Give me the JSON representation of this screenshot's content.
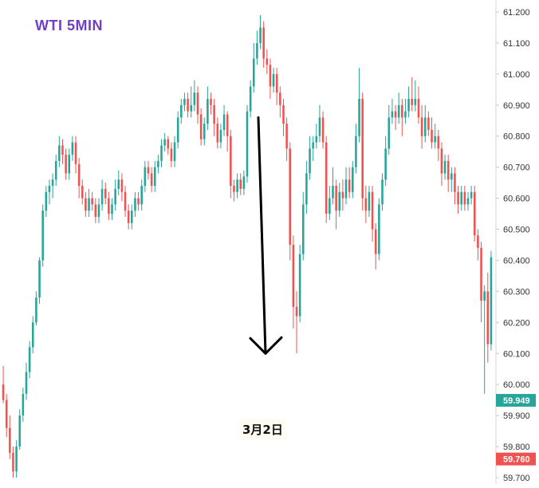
{
  "chart_data": {
    "type": "candlestick",
    "title": "WTI 5MIN",
    "annotation": "3月2日",
    "y_axis": {
      "position": "right",
      "ylim": [
        59.68,
        61.22
      ],
      "tick_labels": [
        "61.200",
        "61.100",
        "61.000",
        "60.900",
        "60.800",
        "60.700",
        "60.600",
        "60.500",
        "60.400",
        "60.300",
        "60.200",
        "60.100",
        "60.000",
        "59.900",
        "59.800",
        "59.700"
      ],
      "tick_values": [
        61.2,
        61.1,
        61.0,
        60.9,
        60.8,
        60.7,
        60.6,
        60.5,
        60.4,
        60.3,
        60.2,
        60.1,
        60.0,
        59.9,
        59.8,
        59.7
      ]
    },
    "price_tags": [
      {
        "label": "59.949",
        "value": 59.949,
        "color": "#26a69a"
      },
      {
        "label": "59.760",
        "value": 59.76,
        "color": "#ef5350"
      }
    ],
    "grid": false,
    "colors": {
      "up": "#26a69a",
      "down": "#ef5350",
      "arrow": "#000000",
      "title": "#6f3fc6"
    },
    "arrow": {
      "from_value": 60.86,
      "to_value": 60.1
    },
    "candles": [
      [
        60.0,
        59.95,
        60.06,
        59.94
      ],
      [
        59.95,
        59.86,
        59.97,
        59.83
      ],
      [
        59.86,
        59.78,
        59.9,
        59.76
      ],
      [
        59.78,
        59.72,
        59.8,
        59.7
      ],
      [
        59.72,
        59.8,
        59.82,
        59.7
      ],
      [
        59.8,
        59.9,
        59.92,
        59.79
      ],
      [
        59.9,
        59.97,
        59.99,
        59.88
      ],
      [
        59.97,
        60.04,
        60.07,
        59.95
      ],
      [
        60.04,
        60.12,
        60.14,
        60.02
      ],
      [
        60.12,
        60.2,
        60.22,
        60.1
      ],
      [
        60.2,
        60.28,
        60.3,
        60.19
      ],
      [
        60.28,
        60.4,
        60.41,
        60.26
      ],
      [
        60.4,
        60.56,
        60.58,
        60.38
      ],
      [
        60.56,
        60.62,
        60.64,
        60.54
      ],
      [
        60.62,
        60.64,
        60.66,
        60.58
      ],
      [
        60.64,
        60.66,
        60.68,
        60.6
      ],
      [
        60.66,
        60.72,
        60.74,
        60.64
      ],
      [
        60.72,
        60.77,
        60.8,
        60.7
      ],
      [
        60.77,
        60.74,
        60.79,
        60.71
      ],
      [
        60.74,
        60.68,
        60.76,
        60.66
      ],
      [
        60.68,
        60.74,
        60.76,
        60.66
      ],
      [
        60.74,
        60.78,
        60.8,
        60.72
      ],
      [
        60.78,
        60.71,
        60.8,
        60.68
      ],
      [
        60.71,
        60.64,
        60.73,
        60.6
      ],
      [
        60.64,
        60.6,
        60.66,
        60.58
      ],
      [
        60.6,
        60.56,
        60.62,
        60.54
      ],
      [
        60.56,
        60.6,
        60.63,
        60.54
      ],
      [
        60.6,
        60.58,
        60.62,
        60.56
      ],
      [
        60.58,
        60.54,
        60.6,
        60.52
      ],
      [
        60.54,
        60.58,
        60.6,
        60.52
      ],
      [
        60.58,
        60.63,
        60.66,
        60.56
      ],
      [
        60.63,
        60.6,
        60.65,
        60.58
      ],
      [
        60.6,
        60.55,
        60.62,
        60.53
      ],
      [
        60.55,
        60.58,
        60.6,
        60.53
      ],
      [
        60.58,
        60.63,
        60.66,
        60.56
      ],
      [
        60.63,
        60.66,
        60.69,
        60.61
      ],
      [
        60.66,
        60.62,
        60.68,
        60.59
      ],
      [
        60.62,
        60.56,
        60.64,
        60.54
      ],
      [
        60.56,
        60.52,
        60.58,
        60.5
      ],
      [
        60.52,
        60.56,
        60.58,
        60.5
      ],
      [
        60.56,
        60.6,
        60.62,
        60.54
      ],
      [
        60.6,
        60.58,
        60.62,
        60.56
      ],
      [
        60.58,
        60.64,
        60.66,
        60.56
      ],
      [
        60.64,
        60.7,
        60.72,
        60.62
      ],
      [
        60.7,
        60.68,
        60.72,
        60.66
      ],
      [
        60.68,
        60.64,
        60.7,
        60.62
      ],
      [
        60.64,
        60.7,
        60.72,
        60.62
      ],
      [
        60.7,
        60.72,
        60.74,
        60.68
      ],
      [
        60.72,
        60.77,
        60.79,
        60.7
      ],
      [
        60.77,
        60.79,
        60.81,
        60.75
      ],
      [
        60.79,
        60.76,
        60.8,
        60.74
      ],
      [
        60.76,
        60.72,
        60.78,
        60.7
      ],
      [
        60.72,
        60.78,
        60.8,
        60.7
      ],
      [
        60.78,
        60.86,
        60.88,
        60.76
      ],
      [
        60.86,
        60.9,
        60.92,
        60.84
      ],
      [
        60.9,
        60.92,
        60.94,
        60.88
      ],
      [
        60.92,
        60.88,
        60.94,
        60.86
      ],
      [
        60.88,
        60.9,
        60.96,
        60.86
      ],
      [
        60.9,
        60.94,
        60.98,
        60.88
      ],
      [
        60.94,
        60.87,
        60.96,
        60.84
      ],
      [
        60.87,
        60.79,
        60.89,
        60.77
      ],
      [
        60.79,
        60.84,
        60.86,
        60.77
      ],
      [
        60.84,
        60.92,
        60.96,
        60.82
      ],
      [
        60.92,
        60.9,
        60.94,
        60.87
      ],
      [
        60.9,
        60.84,
        60.92,
        60.8
      ],
      [
        60.84,
        60.78,
        60.86,
        60.76
      ],
      [
        60.78,
        60.82,
        60.84,
        60.76
      ],
      [
        60.82,
        60.87,
        60.9,
        60.8
      ],
      [
        60.87,
        60.8,
        60.88,
        60.75
      ],
      [
        60.8,
        60.64,
        60.82,
        60.6
      ],
      [
        60.64,
        60.62,
        60.66,
        60.59
      ],
      [
        60.62,
        60.66,
        60.68,
        60.6
      ],
      [
        60.66,
        60.63,
        60.68,
        60.61
      ],
      [
        60.63,
        60.67,
        60.69,
        60.61
      ],
      [
        60.67,
        60.88,
        60.9,
        60.65
      ],
      [
        60.88,
        60.96,
        60.98,
        60.86
      ],
      [
        60.96,
        61.05,
        61.1,
        60.94
      ],
      [
        61.05,
        61.1,
        61.14,
        61.03
      ],
      [
        61.1,
        61.15,
        61.19,
        61.08
      ],
      [
        61.15,
        61.05,
        61.17,
        61.02
      ],
      [
        61.05,
        61.03,
        61.08,
        61.0
      ],
      [
        61.03,
        60.96,
        61.05,
        60.92
      ],
      [
        60.96,
        61.0,
        61.02,
        60.94
      ],
      [
        61.0,
        60.94,
        61.02,
        60.9
      ],
      [
        60.94,
        60.9,
        60.96,
        60.86
      ],
      [
        60.9,
        60.84,
        60.92,
        60.8
      ],
      [
        60.84,
        60.76,
        60.86,
        60.72
      ],
      [
        60.76,
        60.45,
        60.78,
        60.4
      ],
      [
        60.45,
        60.25,
        60.48,
        60.18
      ],
      [
        60.25,
        60.22,
        60.3,
        60.1
      ],
      [
        60.22,
        60.42,
        60.45,
        60.2
      ],
      [
        60.42,
        60.58,
        60.62,
        60.4
      ],
      [
        60.58,
        60.68,
        60.72,
        60.55
      ],
      [
        60.68,
        60.76,
        60.8,
        60.66
      ],
      [
        60.76,
        60.78,
        60.8,
        60.72
      ],
      [
        60.78,
        60.8,
        60.84,
        60.76
      ],
      [
        60.8,
        60.86,
        60.9,
        60.78
      ],
      [
        60.86,
        60.78,
        60.88,
        60.76
      ],
      [
        60.78,
        60.55,
        60.8,
        60.52
      ],
      [
        60.55,
        60.6,
        60.64,
        60.53
      ],
      [
        60.6,
        60.64,
        60.7,
        60.58
      ],
      [
        60.64,
        60.56,
        60.66,
        60.5
      ],
      [
        60.56,
        60.62,
        60.65,
        60.54
      ],
      [
        60.62,
        60.6,
        60.66,
        60.56
      ],
      [
        60.6,
        60.66,
        60.7,
        60.58
      ],
      [
        60.66,
        60.62,
        60.7,
        60.6
      ],
      [
        60.62,
        60.7,
        60.72,
        60.6
      ],
      [
        60.7,
        60.8,
        60.84,
        60.68
      ],
      [
        60.8,
        60.92,
        61.02,
        60.78
      ],
      [
        60.92,
        60.6,
        60.94,
        60.56
      ],
      [
        60.6,
        60.56,
        60.64,
        60.52
      ],
      [
        60.56,
        60.62,
        60.64,
        60.54
      ],
      [
        60.62,
        60.5,
        60.64,
        60.46
      ],
      [
        60.5,
        60.42,
        60.52,
        60.37
      ],
      [
        60.42,
        60.58,
        60.6,
        60.4
      ],
      [
        60.58,
        60.66,
        60.68,
        60.56
      ],
      [
        60.66,
        60.76,
        60.8,
        60.64
      ],
      [
        60.76,
        60.86,
        60.9,
        60.74
      ],
      [
        60.86,
        60.88,
        60.92,
        60.84
      ],
      [
        60.88,
        60.86,
        60.9,
        60.82
      ],
      [
        60.86,
        60.9,
        60.94,
        60.84
      ],
      [
        60.9,
        60.86,
        60.92,
        60.8
      ],
      [
        60.86,
        60.88,
        60.92,
        60.84
      ],
      [
        60.88,
        60.92,
        60.96,
        60.86
      ],
      [
        60.92,
        60.9,
        60.99,
        60.88
      ],
      [
        60.9,
        60.92,
        60.98,
        60.88
      ],
      [
        60.92,
        60.86,
        60.96,
        60.84
      ],
      [
        60.86,
        60.8,
        60.9,
        60.76
      ],
      [
        60.8,
        60.86,
        60.9,
        60.78
      ],
      [
        60.86,
        60.82,
        60.88,
        60.8
      ],
      [
        60.82,
        60.78,
        60.86,
        60.76
      ],
      [
        60.78,
        60.8,
        60.84,
        60.76
      ],
      [
        60.8,
        60.76,
        60.82,
        60.72
      ],
      [
        60.76,
        60.68,
        60.78,
        60.64
      ],
      [
        60.68,
        60.72,
        60.74,
        60.66
      ],
      [
        60.72,
        60.66,
        60.74,
        60.62
      ],
      [
        60.66,
        60.68,
        60.7,
        60.62
      ],
      [
        60.68,
        60.62,
        60.7,
        60.58
      ],
      [
        60.62,
        60.58,
        60.64,
        60.55
      ],
      [
        60.58,
        60.62,
        60.64,
        60.56
      ],
      [
        60.62,
        60.58,
        60.64,
        60.56
      ],
      [
        60.58,
        60.6,
        60.62,
        60.56
      ],
      [
        60.6,
        60.62,
        60.64,
        60.58
      ],
      [
        60.62,
        60.48,
        60.64,
        60.46
      ],
      [
        60.48,
        60.44,
        60.5,
        60.4
      ],
      [
        60.44,
        60.27,
        60.46,
        60.2
      ],
      [
        60.27,
        60.3,
        60.32,
        59.97
      ],
      [
        60.3,
        60.13,
        60.36,
        60.07
      ],
      [
        60.13,
        60.41,
        60.43,
        60.11
      ]
    ]
  }
}
